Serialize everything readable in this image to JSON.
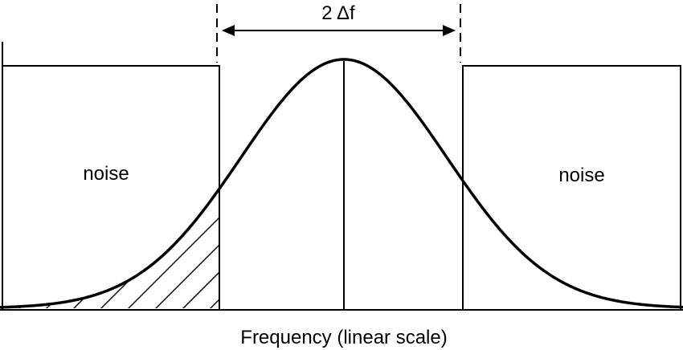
{
  "diagram": {
    "bandwidth_label": "2 Δf",
    "noise_left_label": "noise",
    "noise_right_label": "noise",
    "x_axis_label": "Frequency (linear scale)",
    "colors": {
      "stroke": "#000000",
      "background": "#ffffff"
    }
  }
}
